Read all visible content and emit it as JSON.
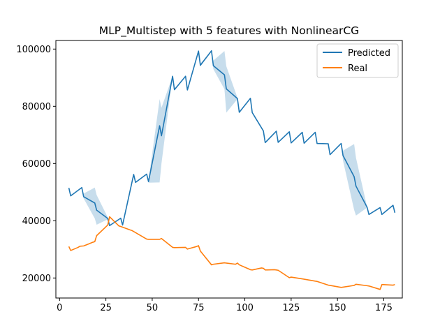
{
  "chart_data": {
    "type": "line",
    "title": "MLP_Multistep with 5 features with NonlinearCG",
    "xlabel": "",
    "ylabel": "",
    "xlim": [
      -2,
      185
    ],
    "ylim": [
      13000,
      103000
    ],
    "x_ticks": [
      0,
      25,
      50,
      75,
      100,
      125,
      150,
      175
    ],
    "y_ticks": [
      20000,
      40000,
      60000,
      80000,
      100000
    ],
    "y_tick_labels": [
      "20000",
      "40000",
      "60000",
      "80000",
      "100000"
    ],
    "legend": {
      "position": "top-right"
    },
    "series": [
      {
        "name": "Predicted",
        "color": "#1f77b4",
        "x": [
          5,
          6,
          12,
          13,
          19,
          20,
          26,
          27,
          33,
          34,
          40,
          41,
          47,
          48,
          54,
          55,
          61,
          62,
          68,
          69,
          75,
          76,
          82,
          83,
          89,
          90,
          96,
          97,
          103,
          104,
          110,
          111,
          117,
          118,
          124,
          125,
          131,
          132,
          138,
          139,
          145,
          146,
          152,
          153,
          159,
          160,
          166,
          167,
          173,
          174,
          180,
          181
        ],
        "y": [
          51500,
          48700,
          51600,
          48400,
          46200,
          43700,
          40800,
          38300,
          40900,
          38500,
          56200,
          53400,
          56300,
          53700,
          73200,
          69700,
          90500,
          85800,
          90500,
          85700,
          99300,
          94300,
          99400,
          94200,
          91000,
          86100,
          82700,
          77900,
          82800,
          77800,
          71400,
          67300,
          71300,
          67400,
          71100,
          67200,
          70900,
          67100,
          70900,
          67000,
          66900,
          63100,
          67000,
          62800,
          55400,
          52100,
          44700,
          42200,
          44600,
          42200,
          45400,
          42800
        ],
        "band_upper": [
          51500,
          48700,
          51600,
          49500,
          51600,
          49000,
          41200,
          38500,
          41000,
          38800,
          56200,
          53500,
          56300,
          54000,
          82500,
          79500,
          90500,
          85800,
          90500,
          85800,
          99300,
          95000,
          99400,
          96000,
          99300,
          94000,
          83000,
          78200,
          82800,
          77800,
          71400,
          67400,
          71300,
          67400,
          71100,
          67200,
          70900,
          67100,
          70900,
          67000,
          66900,
          63100,
          67000,
          64500,
          66800,
          62000,
          44800,
          42200,
          44600,
          42200,
          45400,
          42800
        ],
        "band_lower": [
          51500,
          48700,
          51600,
          47800,
          40800,
          38600,
          40500,
          38100,
          40800,
          38300,
          56200,
          53300,
          56300,
          53300,
          53400,
          60000,
          90500,
          85800,
          90500,
          85700,
          99300,
          94100,
          99400,
          93000,
          86000,
          77800,
          82500,
          77600,
          82800,
          77800,
          71400,
          67200,
          71300,
          67400,
          71100,
          67200,
          70900,
          67100,
          70900,
          67000,
          66900,
          63100,
          67000,
          61000,
          43800,
          41800,
          44600,
          42200,
          44600,
          42200,
          45400,
          42800
        ]
      },
      {
        "name": "Real",
        "color": "#ff7f0e",
        "x": [
          5,
          6,
          10,
          11,
          13,
          18,
          19,
          20,
          26,
          27,
          32,
          33,
          38,
          39,
          47,
          48,
          54,
          55,
          61,
          62,
          68,
          69,
          74,
          75,
          76,
          82,
          83,
          89,
          90,
          95,
          96,
          97,
          103,
          104,
          109,
          110,
          111,
          116,
          117,
          118,
          124,
          125,
          128,
          131,
          138,
          139,
          145,
          146,
          152,
          153,
          158,
          159,
          160,
          166,
          167,
          173,
          174,
          180,
          181
        ],
        "y": [
          31000,
          29600,
          30700,
          31100,
          31200,
          32500,
          32700,
          34800,
          38500,
          41400,
          38200,
          38000,
          36800,
          36600,
          33600,
          33500,
          33500,
          33800,
          30700,
          30600,
          30700,
          30100,
          31000,
          31300,
          29400,
          24600,
          24800,
          25300,
          25200,
          24800,
          25200,
          24600,
          22900,
          22800,
          23500,
          23400,
          22800,
          22900,
          22800,
          22700,
          20100,
          20300,
          20000,
          19700,
          18900,
          18800,
          17500,
          17400,
          16700,
          16800,
          17300,
          17400,
          17800,
          17300,
          17200,
          16000,
          17700,
          17500,
          17700
        ]
      }
    ]
  }
}
